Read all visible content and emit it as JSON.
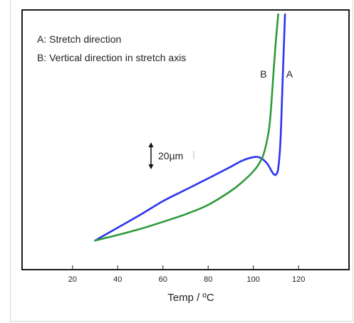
{
  "chart_data": {
    "type": "line",
    "title": "",
    "xlabel": "Temp / ºC",
    "ylabel": "",
    "xlim": [
      -2,
      142
    ],
    "ylim": [
      0,
      100
    ],
    "x_ticks": [
      20,
      40,
      60,
      80,
      100,
      120
    ],
    "grid": false,
    "legend_lines": [
      "A: Stretch direction",
      "B: Vertical direction in stretch axis"
    ],
    "scale_bar": {
      "label": "20µm",
      "span_units": 10
    },
    "series": [
      {
        "name": "A",
        "color": "#2b34f0",
        "x": [
          30,
          40,
          50,
          60,
          70,
          80,
          90,
          95,
          100,
          103,
          106,
          108,
          109,
          110,
          111,
          112,
          113,
          114
        ],
        "y": [
          10.4,
          15.5,
          20.6,
          26.0,
          30.5,
          35.0,
          39.6,
          42.0,
          43.4,
          43.2,
          41.0,
          38.0,
          36.7,
          36.5,
          39.0,
          50.0,
          75.0,
          100.0
        ]
      },
      {
        "name": "B",
        "color": "#2e9a3a",
        "x": [
          30,
          40,
          50,
          60,
          70,
          80,
          90,
          95,
          100,
          103,
          105,
          107,
          108,
          109,
          110,
          110.5,
          111
        ],
        "y": [
          10.4,
          12.6,
          15.0,
          17.8,
          20.8,
          24.5,
          30.0,
          33.5,
          37.8,
          41.6,
          46.0,
          55.0,
          65.0,
          78.0,
          90.0,
          95.0,
          100.0
        ]
      }
    ],
    "curve_labels": [
      {
        "text": "B",
        "x": 103,
        "y": 75
      },
      {
        "text": "A",
        "x": 114.5,
        "y": 75
      }
    ]
  }
}
